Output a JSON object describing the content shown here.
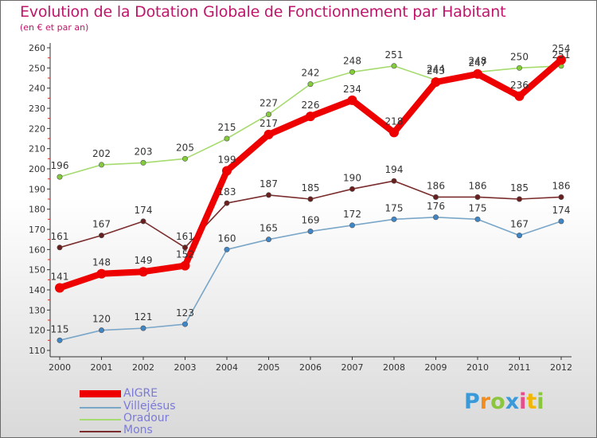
{
  "header": {
    "title": "Evolution de la Dotation Globale de Fonctionnement par Habitant",
    "subtitle": "(en € et par an)"
  },
  "chart_data": {
    "type": "line",
    "title": "Evolution de la Dotation Globale de Fonctionnement par Habitant",
    "subtitle": "(en € et par an)",
    "xlabel": "",
    "ylabel": "",
    "categories": [
      "2000",
      "2001",
      "2002",
      "2003",
      "2004",
      "2005",
      "2006",
      "2007",
      "2008",
      "2009",
      "2010",
      "2011",
      "2012"
    ],
    "ylim": [
      110,
      260
    ],
    "yticks": [
      110,
      120,
      130,
      140,
      150,
      160,
      170,
      180,
      190,
      200,
      210,
      220,
      230,
      240,
      250,
      260
    ],
    "grid": false,
    "legend_position": "bottom-left",
    "series": [
      {
        "name": "AIGRE",
        "color": "#ee0000",
        "values": [
          141,
          148,
          149,
          152,
          199,
          217,
          226,
          234,
          218,
          243,
          247,
          236,
          254
        ]
      },
      {
        "name": "Villejésus",
        "color": "#7aa6c8",
        "marker_color": "#3f86c6",
        "values": [
          115,
          120,
          121,
          123,
          160,
          165,
          169,
          172,
          175,
          176,
          175,
          167,
          174
        ]
      },
      {
        "name": "Oradour",
        "color": "#a6db6f",
        "marker_color": "#84cc3c",
        "values": [
          196,
          202,
          203,
          205,
          215,
          227,
          242,
          248,
          251,
          244,
          248,
          250,
          251
        ]
      },
      {
        "name": "Mons",
        "color": "#7b2d2d",
        "marker_color": "#6a1f1f",
        "values": [
          161,
          167,
          174,
          161,
          183,
          187,
          185,
          190,
          194,
          186,
          186,
          185,
          186
        ]
      }
    ]
  },
  "legend": {
    "items": [
      {
        "label": "AIGRE",
        "color": "#ee0000"
      },
      {
        "label": "Villejésus",
        "color": "#7aa6c8"
      },
      {
        "label": "Oradour",
        "color": "#a6db6f"
      },
      {
        "label": "Mons",
        "color": "#7b2d2d"
      }
    ]
  },
  "branding": {
    "logo_letters": [
      "P",
      "r",
      "o",
      "x",
      "i",
      "t",
      "i"
    ],
    "logo_colors": [
      "#3a9ad9",
      "#f28c1c",
      "#8cc63f",
      "#3a9ad9",
      "#e84c8a",
      "#f2b705",
      "#8cc63f"
    ]
  }
}
